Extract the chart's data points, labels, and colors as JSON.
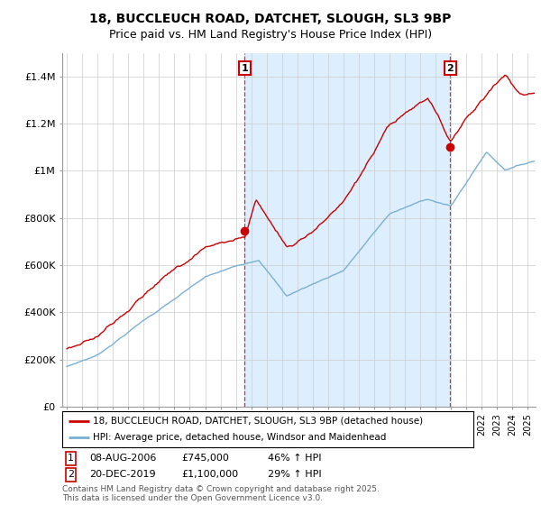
{
  "title": "18, BUCCLEUCH ROAD, DATCHET, SLOUGH, SL3 9BP",
  "subtitle": "Price paid vs. HM Land Registry's House Price Index (HPI)",
  "ylabel_ticks": [
    "£0",
    "£200K",
    "£400K",
    "£600K",
    "£800K",
    "£1M",
    "£1.2M",
    "£1.4M"
  ],
  "ytick_values": [
    0,
    200000,
    400000,
    600000,
    800000,
    1000000,
    1200000,
    1400000
  ],
  "ylim": [
    0,
    1500000
  ],
  "xlim_start": 1994.7,
  "xlim_end": 2025.5,
  "red_color": "#cc0000",
  "blue_color": "#7ab0d4",
  "shade_color": "#ddeeff",
  "marker1_x": 2006.58,
  "marker1_y": 745000,
  "marker2_x": 2019.95,
  "marker2_y": 1100000,
  "annotation1_label": "1",
  "annotation2_label": "2",
  "legend_line1": "18, BUCCLEUCH ROAD, DATCHET, SLOUGH, SL3 9BP (detached house)",
  "legend_line2": "HPI: Average price, detached house, Windsor and Maidenhead",
  "table_row1_num": "1",
  "table_row1_date": "08-AUG-2006",
  "table_row1_price": "£745,000",
  "table_row1_hpi": "46% ↑ HPI",
  "table_row2_num": "2",
  "table_row2_date": "20-DEC-2019",
  "table_row2_price": "£1,100,000",
  "table_row2_hpi": "29% ↑ HPI",
  "footer": "Contains HM Land Registry data © Crown copyright and database right 2025.\nThis data is licensed under the Open Government Licence v3.0.",
  "bg_color": "#ffffff",
  "grid_color": "#cccccc",
  "title_fontsize": 10,
  "subtitle_fontsize": 9,
  "tick_fontsize": 8,
  "dpi": 100,
  "fig_width": 6.0,
  "fig_height": 5.6
}
